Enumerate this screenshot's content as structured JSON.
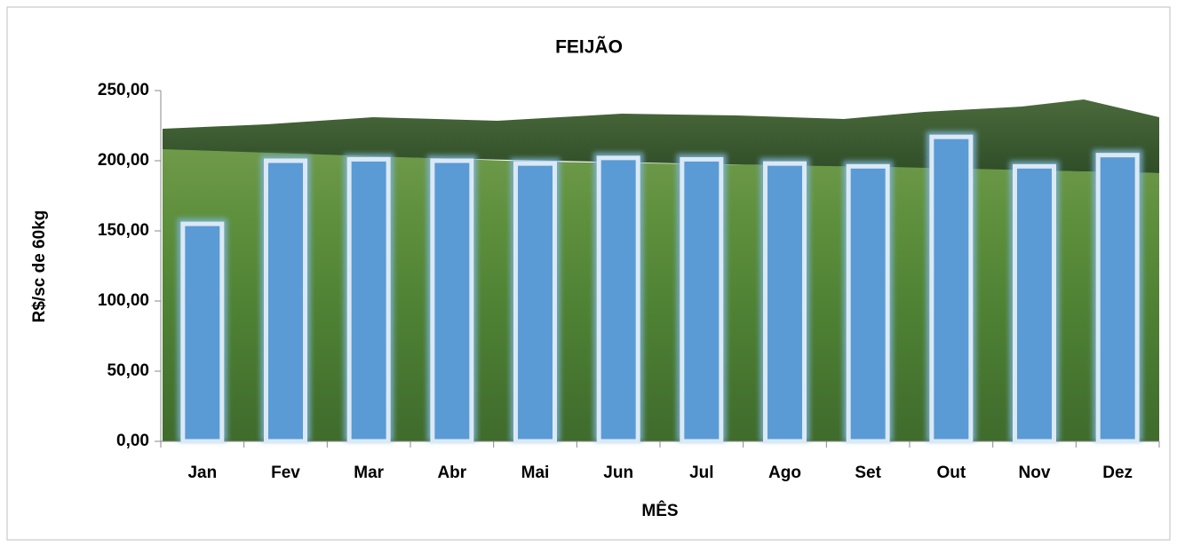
{
  "chart_data": {
    "type": "bar",
    "title": "FEIJÃO",
    "x_label": "MÊS",
    "y_label": "R$/sc de 60kg",
    "categories": [
      "Jan",
      "Fev",
      "Mar",
      "Abr",
      "Mai",
      "Jun",
      "Jul",
      "Ago",
      "Set",
      "Out",
      "Nov",
      "Dez"
    ],
    "values": [
      155,
      200,
      201,
      200,
      198,
      202,
      201,
      198,
      196,
      217,
      196,
      204
    ],
    "color": "#5b9bd5",
    "ylim": [
      0,
      250
    ],
    "yticks": [
      {
        "value": 0,
        "label": "0,00"
      },
      {
        "value": 50,
        "label": "50,00"
      },
      {
        "value": 100,
        "label": "100,00"
      },
      {
        "value": 150,
        "label": "150,00"
      },
      {
        "value": 200,
        "label": "200,00"
      },
      {
        "value": 250,
        "label": "250,00"
      }
    ]
  }
}
